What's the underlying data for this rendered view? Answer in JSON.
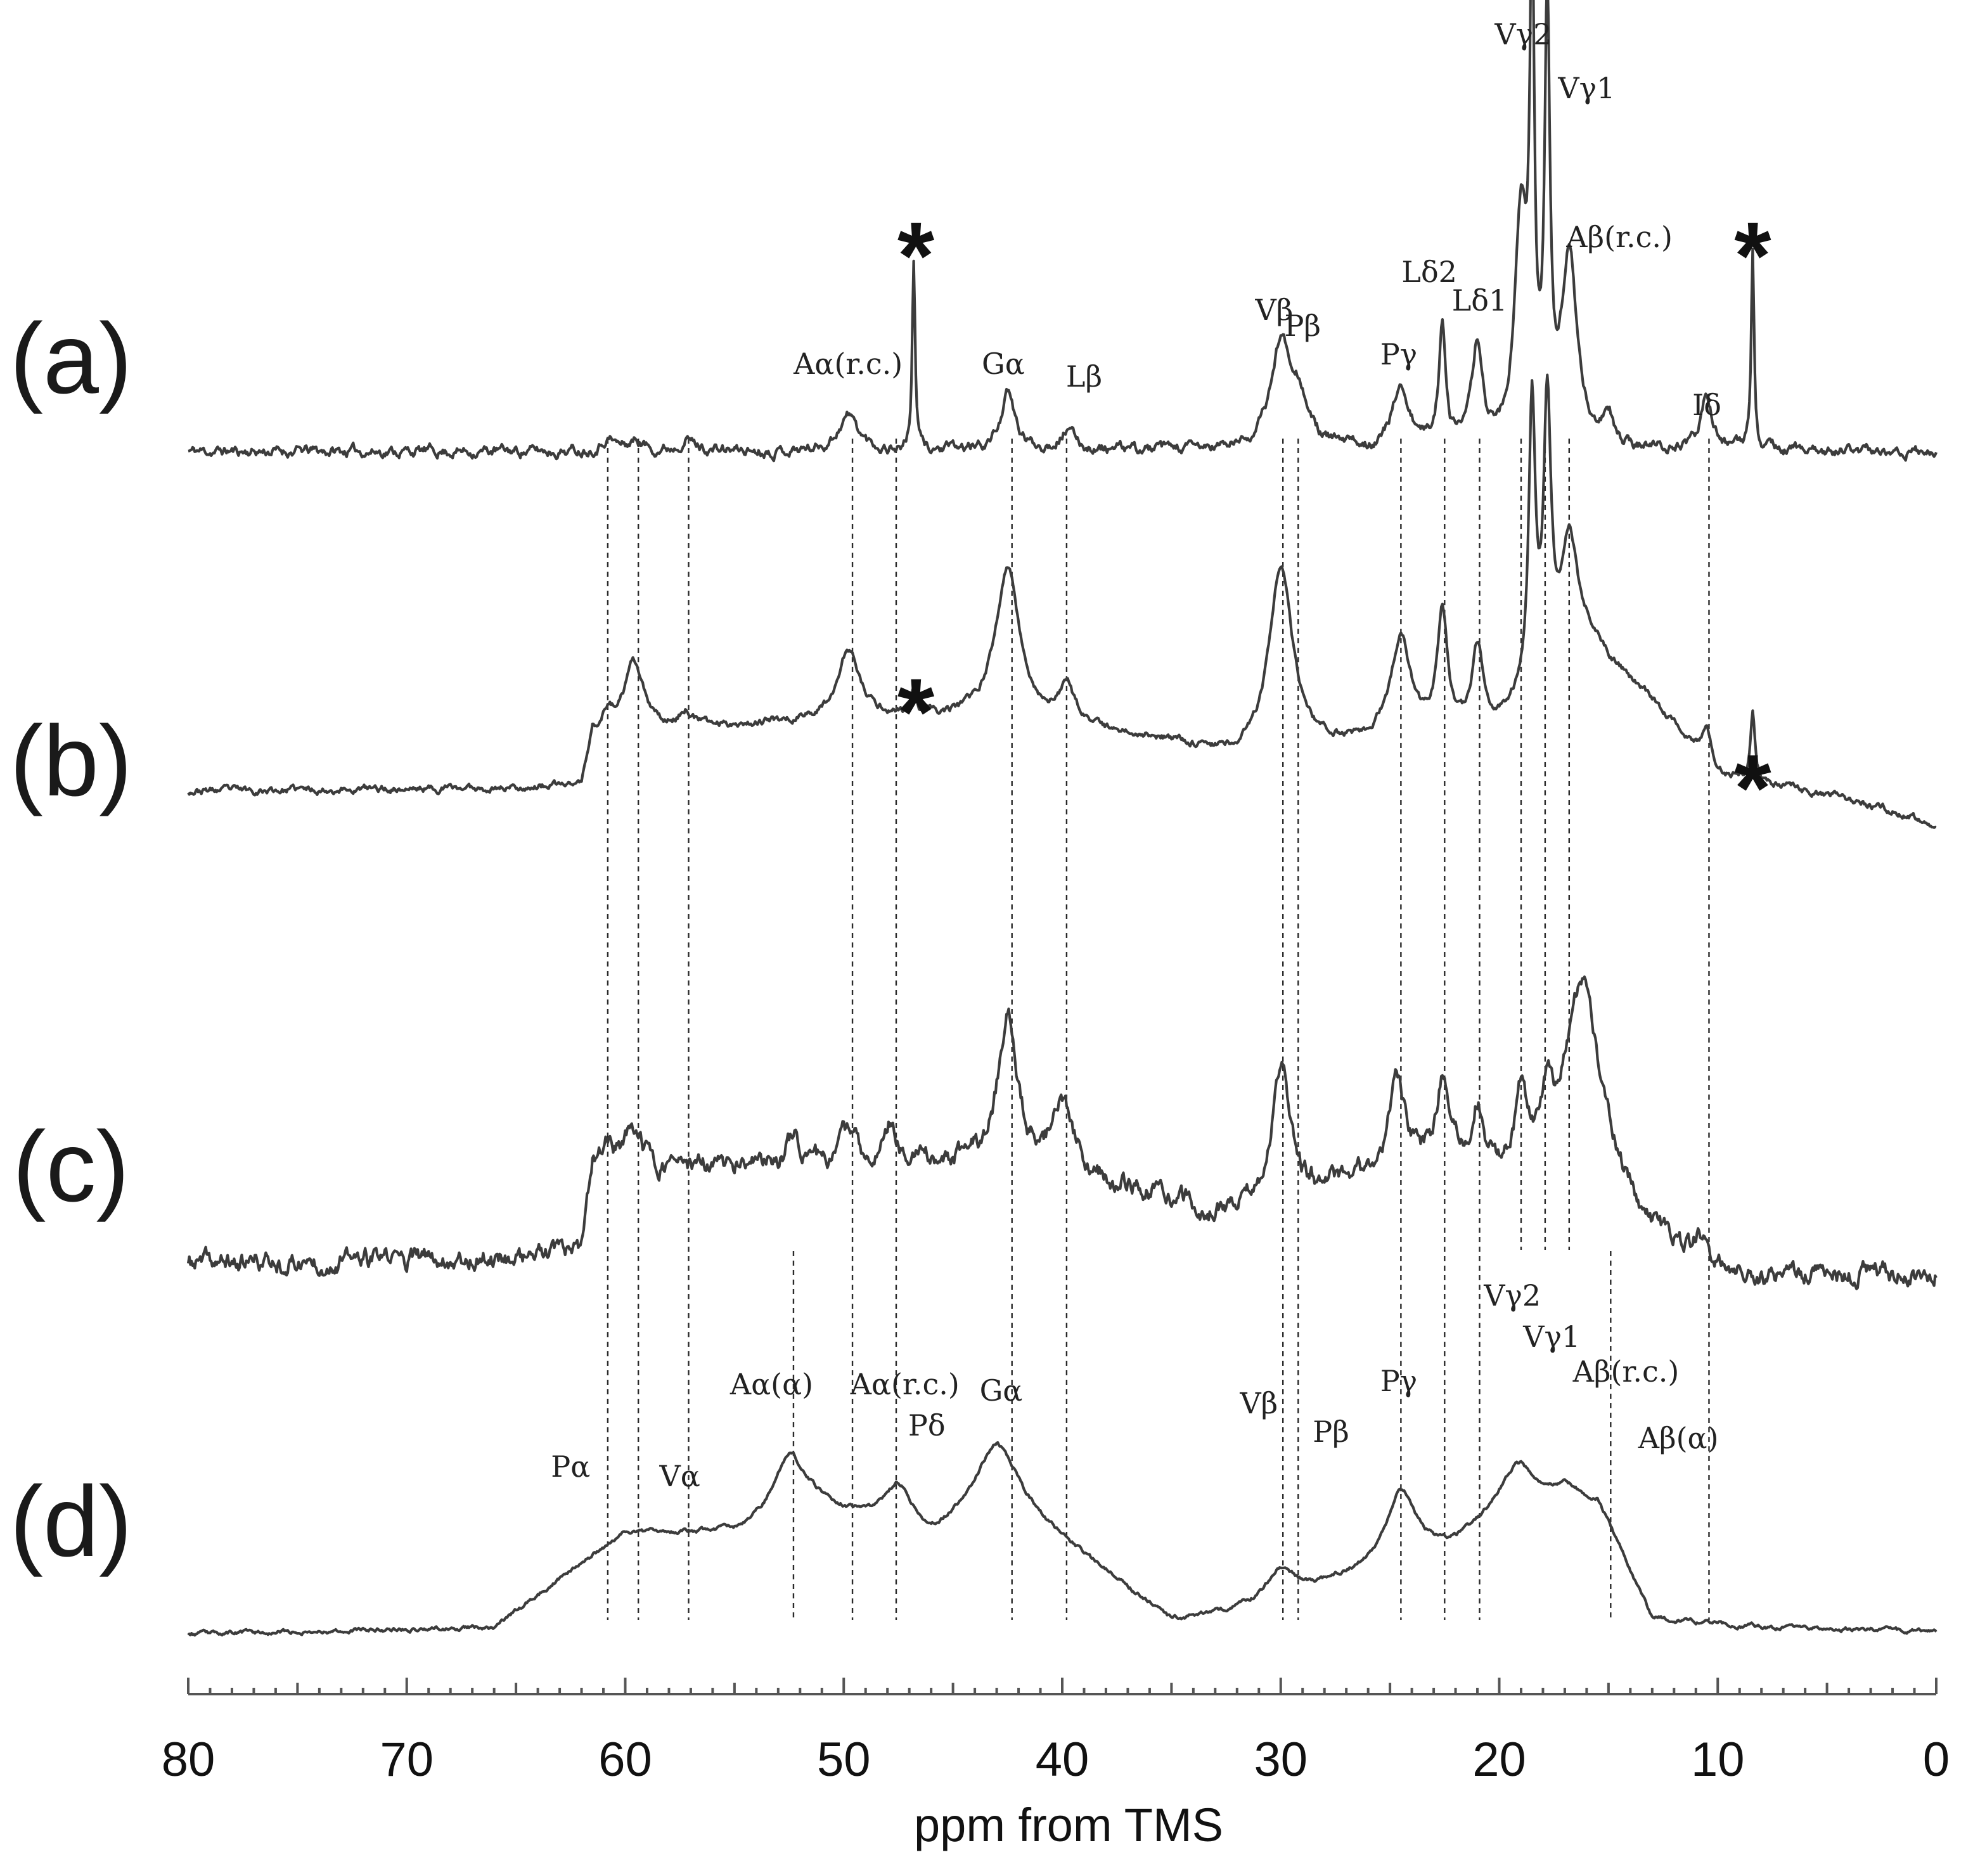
{
  "chart_data": {
    "type": "line",
    "title": "",
    "xlabel": "ppm from TMS",
    "ylabel": "",
    "xlim": [
      80,
      0
    ],
    "x_reversed": true,
    "x_ticks": [
      80,
      70,
      60,
      50,
      40,
      30,
      20,
      10,
      0
    ],
    "x_tick_labels": [
      "80",
      "70",
      "60",
      "50",
      "40",
      "30",
      "20",
      "10",
      "0"
    ],
    "minor_tick_step": 1,
    "grid": false,
    "legend": "none",
    "trace_color": "#3c3c3c",
    "series": [
      {
        "name": "(a)",
        "noise": 0.045,
        "seed": 11,
        "baseline": [
          [
            80,
            0.0
          ],
          [
            0,
            0.0
          ]
        ],
        "peaks": [
          {
            "x": 60.8,
            "h": 0.08,
            "w": 0.4
          },
          {
            "x": 59.5,
            "h": 0.06,
            "w": 0.4
          },
          {
            "x": 57.2,
            "h": 0.08,
            "w": 0.4
          },
          {
            "x": 49.8,
            "h": 0.22,
            "w": 0.55
          },
          {
            "x": 46.8,
            "h": 1.15,
            "w": 0.08
          },
          {
            "x": 42.5,
            "h": 0.34,
            "w": 0.4
          },
          {
            "x": 39.8,
            "h": 0.12,
            "w": 0.45
          },
          {
            "x": 30.0,
            "h": 0.62,
            "w": 0.55
          },
          {
            "x": 29.2,
            "h": 0.28,
            "w": 0.5
          },
          {
            "x": 24.5,
            "h": 0.38,
            "w": 0.45
          },
          {
            "x": 22.6,
            "h": 0.72,
            "w": 0.2
          },
          {
            "x": 21.0,
            "h": 0.62,
            "w": 0.28
          },
          {
            "x": 19.0,
            "h": 1.35,
            "w": 0.35
          },
          {
            "x": 18.5,
            "h": 2.8,
            "w": 0.12
          },
          {
            "x": 17.8,
            "h": 2.55,
            "w": 0.14
          },
          {
            "x": 16.8,
            "h": 1.18,
            "w": 0.42
          },
          {
            "x": 15.0,
            "h": 0.18,
            "w": 0.3
          },
          {
            "x": 10.5,
            "h": 0.34,
            "w": 0.3
          },
          {
            "x": 8.4,
            "h": 1.25,
            "w": 0.08
          }
        ]
      },
      {
        "name": "(b)",
        "noise": 0.03,
        "seed": 23,
        "baseline": [
          [
            80,
            0.0
          ],
          [
            62,
            0.02
          ],
          [
            61.5,
            0.32
          ],
          [
            55,
            0.4
          ],
          [
            47,
            0.45
          ],
          [
            36,
            0.32
          ],
          [
            32,
            0.2
          ],
          [
            25,
            0.3
          ],
          [
            20.5,
            0.35
          ],
          [
            16,
            0.9
          ],
          [
            13,
            0.55
          ],
          [
            10,
            0.1
          ],
          [
            4,
            -0.05
          ],
          [
            0,
            -0.2
          ]
        ],
        "peaks": [
          {
            "x": 60.8,
            "h": 0.12,
            "w": 0.4
          },
          {
            "x": 59.6,
            "h": 0.42,
            "w": 0.55
          },
          {
            "x": 57.2,
            "h": 0.1,
            "w": 0.4
          },
          {
            "x": 49.8,
            "h": 0.42,
            "w": 0.6
          },
          {
            "x": 46.8,
            "h": 0.15,
            "w": 0.1
          },
          {
            "x": 42.5,
            "h": 0.95,
            "w": 0.7
          },
          {
            "x": 39.8,
            "h": 0.22,
            "w": 0.5
          },
          {
            "x": 30.0,
            "h": 1.12,
            "w": 0.65
          },
          {
            "x": 24.5,
            "h": 0.62,
            "w": 0.55
          },
          {
            "x": 22.6,
            "h": 0.72,
            "w": 0.28
          },
          {
            "x": 21.0,
            "h": 0.5,
            "w": 0.3
          },
          {
            "x": 18.5,
            "h": 1.72,
            "w": 0.18
          },
          {
            "x": 17.8,
            "h": 1.62,
            "w": 0.2
          },
          {
            "x": 16.8,
            "h": 0.75,
            "w": 0.45
          },
          {
            "x": 10.5,
            "h": 0.22,
            "w": 0.3
          },
          {
            "x": 8.4,
            "h": 0.4,
            "w": 0.12
          }
        ]
      },
      {
        "name": "(c)",
        "noise": 0.085,
        "seed": 37,
        "baseline": [
          [
            80,
            0.0
          ],
          [
            62,
            0.05
          ],
          [
            61.5,
            0.6
          ],
          [
            52,
            0.6
          ],
          [
            44,
            0.62
          ],
          [
            36,
            0.45
          ],
          [
            33,
            0.3
          ],
          [
            27,
            0.5
          ],
          [
            22,
            0.6
          ],
          [
            15,
            0.5
          ],
          [
            13,
            0.15
          ],
          [
            10.5,
            0.0
          ],
          [
            8,
            -0.1
          ],
          [
            0,
            -0.05
          ]
        ],
        "peaks": [
          {
            "x": 60.8,
            "h": 0.15,
            "w": 0.4
          },
          {
            "x": 59.6,
            "h": 0.25,
            "w": 0.45
          },
          {
            "x": 52.3,
            "h": 0.2,
            "w": 0.45
          },
          {
            "x": 49.8,
            "h": 0.2,
            "w": 0.5
          },
          {
            "x": 47.8,
            "h": 0.25,
            "w": 0.4
          },
          {
            "x": 42.5,
            "h": 0.95,
            "w": 0.55
          },
          {
            "x": 40.0,
            "h": 0.45,
            "w": 0.6
          },
          {
            "x": 30.0,
            "h": 0.8,
            "w": 0.5
          },
          {
            "x": 24.7,
            "h": 0.58,
            "w": 0.5
          },
          {
            "x": 22.6,
            "h": 0.5,
            "w": 0.35
          },
          {
            "x": 21.0,
            "h": 0.35,
            "w": 0.3
          },
          {
            "x": 19.0,
            "h": 0.45,
            "w": 0.3
          },
          {
            "x": 17.8,
            "h": 0.35,
            "w": 0.3
          },
          {
            "x": 16.2,
            "h": 1.22,
            "w": 0.95
          },
          {
            "x": 10.8,
            "h": 0.15,
            "w": 0.3
          }
        ]
      },
      {
        "name": "(d)",
        "noise": 0.022,
        "seed": 53,
        "baseline": [
          [
            80,
            0.0
          ],
          [
            66,
            0.05
          ],
          [
            60,
            0.8
          ],
          [
            55,
            0.8
          ],
          [
            51.5,
            1.02
          ],
          [
            46,
            0.72
          ],
          [
            43,
            1.1
          ],
          [
            35,
            0.1
          ],
          [
            30,
            0.22
          ],
          [
            27.5,
            0.4
          ],
          [
            22,
            0.7
          ],
          [
            19,
            1.1
          ],
          [
            15.5,
            1.05
          ],
          [
            13,
            0.12
          ],
          [
            8,
            0.05
          ],
          [
            0,
            0.02
          ]
        ],
        "peaks": [
          {
            "x": 52.5,
            "h": 0.45,
            "w": 0.8
          },
          {
            "x": 47.5,
            "h": 0.35,
            "w": 0.8
          },
          {
            "x": 43.0,
            "h": 0.4,
            "w": 1.2
          },
          {
            "x": 30.0,
            "h": 0.3,
            "w": 0.8
          },
          {
            "x": 24.5,
            "h": 0.55,
            "w": 0.8
          },
          {
            "x": 19.3,
            "h": 0.25,
            "w": 0.9
          },
          {
            "x": 17.0,
            "h": 0.08,
            "w": 0.6
          }
        ]
      }
    ],
    "panel_labels": [
      "(a)",
      "(b)",
      "(c)",
      "(d)"
    ],
    "guides": [
      {
        "x": 60.8,
        "from": 0,
        "to": 3
      },
      {
        "x": 59.4,
        "from": 0,
        "to": 3
      },
      {
        "x": 57.1,
        "from": 0,
        "to": 3
      },
      {
        "x": 52.3,
        "from": 2,
        "to": 3
      },
      {
        "x": 49.6,
        "from": 0,
        "to": 3
      },
      {
        "x": 47.6,
        "from": 0,
        "to": 3
      },
      {
        "x": 42.3,
        "from": 0,
        "to": 3
      },
      {
        "x": 39.8,
        "from": 0,
        "to": 3
      },
      {
        "x": 29.9,
        "from": 0,
        "to": 3
      },
      {
        "x": 29.2,
        "from": 0,
        "to": 3
      },
      {
        "x": 24.5,
        "from": 0,
        "to": 3
      },
      {
        "x": 22.5,
        "from": 0,
        "to": 3
      },
      {
        "x": 20.9,
        "from": 0,
        "to": 3
      },
      {
        "x": 19.0,
        "from": 0,
        "to": 2
      },
      {
        "x": 17.9,
        "from": 0,
        "to": 2
      },
      {
        "x": 16.8,
        "from": 0,
        "to": 2
      },
      {
        "x": 14.9,
        "from": 2,
        "to": 3
      },
      {
        "x": 10.4,
        "from": 0,
        "to": 3
      }
    ],
    "annotations": [
      {
        "panel": 0,
        "text": "Aα(r.c.)",
        "x": 49.8
      },
      {
        "panel": 0,
        "text": "Gα",
        "x": 42.7
      },
      {
        "panel": 0,
        "text": "Lβ",
        "x": 39.0
      },
      {
        "panel": 0,
        "text": "Vβ",
        "x": 30.3
      },
      {
        "panel": 0,
        "text": "Pβ",
        "x": 29.0
      },
      {
        "panel": 0,
        "text": "Pγ",
        "x": 24.6
      },
      {
        "panel": 0,
        "text": "Lδ2",
        "x": 23.2
      },
      {
        "panel": 0,
        "text": "Lδ1",
        "x": 20.9
      },
      {
        "panel": 0,
        "text": "Vγ2",
        "x": 18.9
      },
      {
        "panel": 0,
        "text": "Vγ1",
        "x": 16.0
      },
      {
        "panel": 0,
        "text": "Aβ(r.c.)",
        "x": 14.5
      },
      {
        "panel": 0,
        "text": "Iδ",
        "x": 10.5
      },
      {
        "panel": 3,
        "text": "Pα",
        "x": 62.5
      },
      {
        "panel": 3,
        "text": "Vα",
        "x": 57.5
      },
      {
        "panel": 3,
        "text": "Aα(α)",
        "x": 53.3
      },
      {
        "panel": 3,
        "text": "Aα(r.c.)",
        "x": 47.2
      },
      {
        "panel": 3,
        "text": "Pδ",
        "x": 46.2
      },
      {
        "panel": 3,
        "text": "Gα",
        "x": 42.8
      },
      {
        "panel": 3,
        "text": "Vβ",
        "x": 31.0
      },
      {
        "panel": 3,
        "text": "Pβ",
        "x": 27.7
      },
      {
        "panel": 3,
        "text": "Pγ",
        "x": 24.6
      },
      {
        "panel": 3,
        "text": "Vγ2",
        "x": 19.4
      },
      {
        "panel": 3,
        "text": "Vγ1",
        "x": 17.6
      },
      {
        "panel": 3,
        "text": "Aβ(r.c.)",
        "x": 14.2
      },
      {
        "panel": 3,
        "text": "Aβ(α)",
        "x": 11.8
      }
    ],
    "asterisks": [
      {
        "panel": 0,
        "x": 46.7
      },
      {
        "panel": 0,
        "x": 8.4
      },
      {
        "panel": 1,
        "x": 46.7
      },
      {
        "panel": 1,
        "x": 8.4
      }
    ]
  }
}
